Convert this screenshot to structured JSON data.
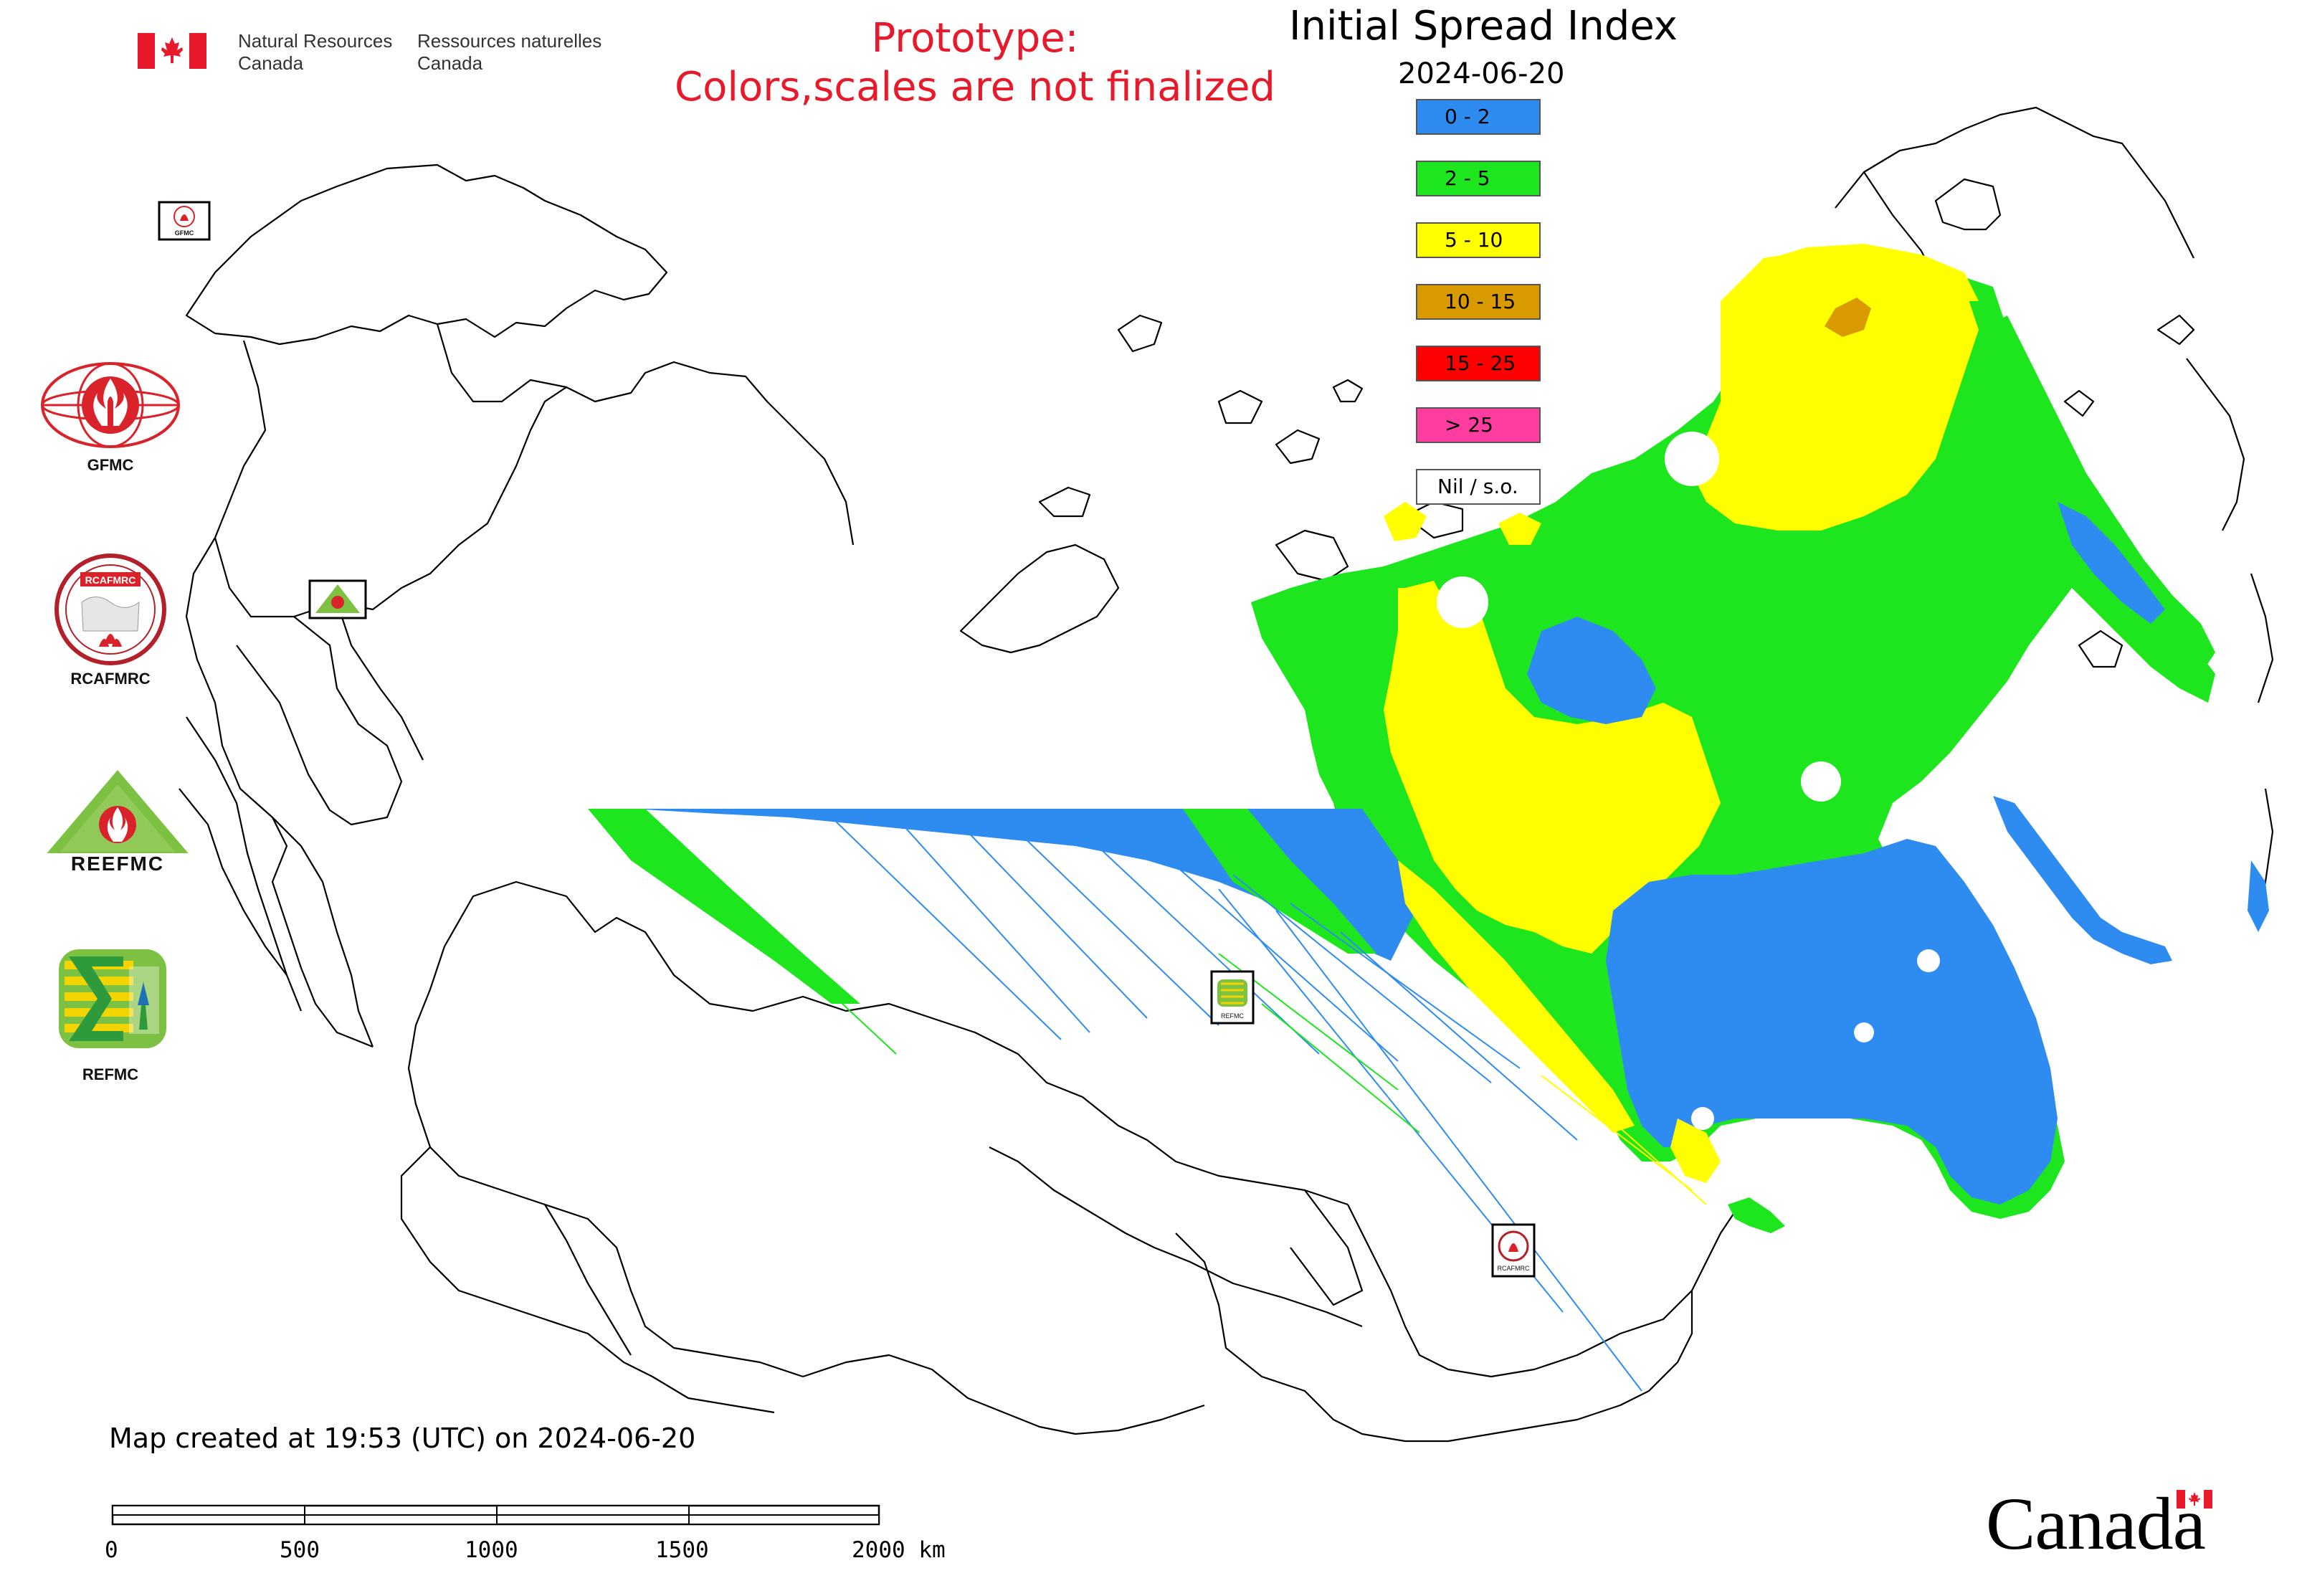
{
  "header": {
    "dept_en_line1": "Natural Resources",
    "dept_en_line2": "Canada",
    "dept_fr_line1": "Ressources naturelles",
    "dept_fr_line2": "Canada"
  },
  "notice": {
    "line1": "Prototype:",
    "line2": "Colors,scales are not finalized",
    "color": "#e8192b"
  },
  "map": {
    "title": "Initial Spread Index",
    "date": "2024-06-20",
    "created_text": "Map created at 19:53 (UTC) on 2024-06-20"
  },
  "legend": [
    {
      "label": "0 - 2",
      "color": "#2e8cf0"
    },
    {
      "label": "2 - 5",
      "color": "#1ee61e"
    },
    {
      "label": "5 - 10",
      "color": "#ffff00"
    },
    {
      "label": "10 - 15",
      "color": "#d99a00"
    },
    {
      "label": "15 - 25",
      "color": "#ff0000"
    },
    {
      "label": "> 25",
      "color": "#ff3da0"
    },
    {
      "label": "Nil / s.o.",
      "color": "#ffffff"
    }
  ],
  "logos": [
    {
      "caption": "GFMC",
      "icon": "gfmc-logo"
    },
    {
      "caption": "RCAFMRC",
      "icon": "rcafmrc-logo"
    },
    {
      "caption": "",
      "icon": "reefmc-logo"
    },
    {
      "caption": "REFMC",
      "icon": "refmc-logo"
    }
  ],
  "logo_inner_texts": {
    "gfmc_small": "GFMC",
    "rcafmrc": "RCAFMRC",
    "reefmc": "REEFMC",
    "refmc_small": "REFMC",
    "rcafmrc_small": "RCAFMRC"
  },
  "scale_bar": {
    "labels": [
      "0",
      "500",
      "1000",
      "1500",
      "2000 km"
    ]
  },
  "footer": {
    "wordmark": "Canada"
  },
  "colors": {
    "isi_0_2": "#2e8cf0",
    "isi_2_5": "#1ee61e",
    "isi_5_10": "#ffff00",
    "isi_10_15": "#d99a00",
    "isi_15_25": "#ff0000",
    "isi_gt_25": "#ff3da0",
    "flag_red": "#e8192b"
  }
}
